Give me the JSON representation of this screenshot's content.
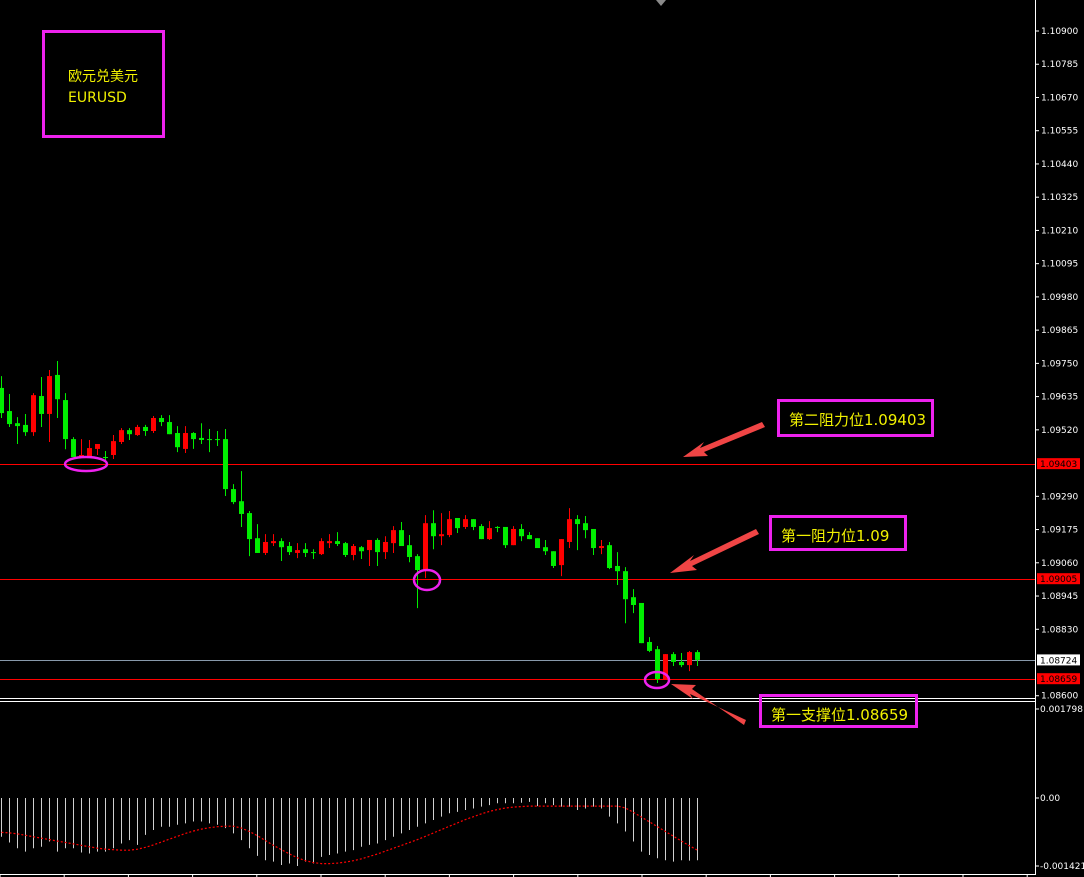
{
  "title_box": {
    "line1": "欧元兑美元",
    "line2": "EURUSD"
  },
  "annotations": {
    "resistance2": "第二阻力位1.09403",
    "resistance1": "第一阻力位1.09",
    "support1": "第一支撑位1.08659"
  },
  "colors": {
    "up": "#ff0000",
    "down": "#00ee00",
    "level_line": "#ff0000",
    "last_price_line": "#8899aa",
    "marker": "#ee22ee",
    "arrow": "#f04545",
    "note_text": "#f2f200",
    "signal": "#ff0000",
    "histogram": "#d0d0d0"
  },
  "chart_data": [
    {
      "type": "candlestick",
      "symbol": "EURUSD",
      "ylim": [
        1.086,
        1.1095
      ],
      "y_ticks": [
        "1.10900",
        "1.10785",
        "1.10670",
        "1.10555",
        "1.10440",
        "1.10325",
        "1.10210",
        "1.10095",
        "1.09980",
        "1.09865",
        "1.09750",
        "1.09635",
        "1.09520",
        "1.09290",
        "1.09175",
        "1.09060",
        "1.08945",
        "1.08830",
        "1.08600"
      ],
      "price_tags": [
        {
          "label": "1.09403",
          "value": 1.09403,
          "kind": "level"
        },
        {
          "label": "1.09005",
          "value": 1.09005,
          "kind": "level"
        },
        {
          "label": "1.08724",
          "value": 1.08724,
          "kind": "last"
        },
        {
          "label": "1.08659",
          "value": 1.08659,
          "kind": "level"
        }
      ],
      "ohlc": [
        [
          1.09665,
          1.09706,
          1.09561,
          1.09578
        ],
        [
          1.09585,
          1.09644,
          1.0953,
          1.0954
        ],
        [
          1.09543,
          1.09564,
          1.09471,
          1.09533
        ],
        [
          1.09537,
          1.09575,
          1.09499,
          1.09512
        ],
        [
          1.09512,
          1.09647,
          1.09499,
          1.0964
        ],
        [
          1.09637,
          1.09703,
          1.0953,
          1.09575
        ],
        [
          1.09575,
          1.09727,
          1.09478,
          1.09706
        ],
        [
          1.0971,
          1.09758,
          1.09561,
          1.09626
        ],
        [
          1.09623,
          1.09647,
          1.09453,
          1.09488
        ],
        [
          1.09488,
          1.09495,
          1.09426,
          1.09426
        ],
        [
          1.09426,
          1.09488,
          1.09426,
          1.09433
        ],
        [
          1.09429,
          1.09485,
          1.09429,
          1.09457
        ],
        [
          1.09454,
          1.09464,
          1.09433,
          1.09471
        ],
        [
          1.09426,
          1.09447,
          1.09415,
          1.09425
        ],
        [
          1.09433,
          1.09502,
          1.09419,
          1.09481
        ],
        [
          1.09478,
          1.09526,
          1.09471,
          1.09519
        ],
        [
          1.09519,
          1.09526,
          1.09485,
          1.09505
        ],
        [
          1.09502,
          1.09537,
          1.09499,
          1.0953
        ],
        [
          1.0953,
          1.09537,
          1.09499,
          1.09516
        ],
        [
          1.09516,
          1.09568,
          1.09509,
          1.09561
        ],
        [
          1.09561,
          1.09571,
          1.09533,
          1.09547
        ],
        [
          1.09547,
          1.09571,
          1.09505,
          1.09505
        ],
        [
          1.09509,
          1.09533,
          1.09443,
          1.0946
        ],
        [
          1.09454,
          1.09533,
          1.0944,
          1.09509
        ],
        [
          1.09509,
          1.09512,
          1.09454,
          1.09488
        ],
        [
          1.09492,
          1.09543,
          1.09471,
          1.09485
        ],
        [
          1.09488,
          1.09523,
          1.09443,
          1.09487
        ],
        [
          1.09488,
          1.09516,
          1.09464,
          1.09487
        ],
        [
          1.09488,
          1.09523,
          1.09291,
          1.09315
        ],
        [
          1.09315,
          1.09332,
          1.09263,
          1.0927
        ],
        [
          1.09273,
          1.09377,
          1.09184,
          1.09229
        ],
        [
          1.09232,
          1.09239,
          1.09083,
          1.09142
        ],
        [
          1.09145,
          1.09194,
          1.09094,
          1.09094
        ],
        [
          1.09094,
          1.09159,
          1.09087,
          1.09132
        ],
        [
          1.09128,
          1.09159,
          1.09118,
          1.09135
        ],
        [
          1.09135,
          1.09145,
          1.09066,
          1.09114
        ],
        [
          1.09118,
          1.09132,
          1.09087,
          1.09097
        ],
        [
          1.09094,
          1.09128,
          1.09076,
          1.09104
        ],
        [
          1.09107,
          1.09128,
          1.0908,
          1.09094
        ],
        [
          1.09097,
          1.09107,
          1.09073,
          1.09096
        ],
        [
          1.0909,
          1.09145,
          1.09087,
          1.09135
        ],
        [
          1.09128,
          1.09159,
          1.09111,
          1.09135
        ],
        [
          1.09135,
          1.09166,
          1.09118,
          1.09125
        ],
        [
          1.09128,
          1.09132,
          1.0908,
          1.09087
        ],
        [
          1.09087,
          1.09125,
          1.09069,
          1.09118
        ],
        [
          1.09114,
          1.09118,
          1.09073,
          1.091
        ],
        [
          1.09104,
          1.09139,
          1.09049,
          1.09139
        ],
        [
          1.09139,
          1.09145,
          1.09049,
          1.09097
        ],
        [
          1.09097,
          1.09152,
          1.09073,
          1.09132
        ],
        [
          1.09128,
          1.09187,
          1.09094,
          1.09173
        ],
        [
          1.09173,
          1.09201,
          1.09118,
          1.09118
        ],
        [
          1.09121,
          1.09156,
          1.09062,
          1.0908
        ],
        [
          1.09083,
          1.0909,
          1.08903,
          1.09035
        ],
        [
          1.09035,
          1.09225,
          1.09007,
          1.09197
        ],
        [
          1.09197,
          1.09242,
          1.09107,
          1.09152
        ],
        [
          1.09152,
          1.09232,
          1.09121,
          1.09159
        ],
        [
          1.09156,
          1.09239,
          1.09149,
          1.09211
        ],
        [
          1.09215,
          1.09215,
          1.09163,
          1.0918
        ],
        [
          1.09184,
          1.09225,
          1.09177,
          1.09211
        ],
        [
          1.09211,
          1.09211,
          1.09173,
          1.09184
        ],
        [
          1.09187,
          1.09194,
          1.09142,
          1.09142
        ],
        [
          1.09142,
          1.09204,
          1.09139,
          1.0918
        ],
        [
          1.09184,
          1.09187,
          1.09166,
          1.09183
        ],
        [
          1.09184,
          1.09184,
          1.09111,
          1.09121
        ],
        [
          1.09121,
          1.09187,
          1.09121,
          1.09177
        ],
        [
          1.09177,
          1.09194,
          1.09135,
          1.09152
        ],
        [
          1.09156,
          1.09166,
          1.09142,
          1.09142
        ],
        [
          1.09145,
          1.09145,
          1.09111,
          1.09111
        ],
        [
          1.09114,
          1.09139,
          1.09087,
          1.091
        ],
        [
          1.091,
          1.091,
          1.09042,
          1.09049
        ],
        [
          1.09052,
          1.09142,
          1.09014,
          1.09142
        ],
        [
          1.09132,
          1.09249,
          1.09111,
          1.09211
        ],
        [
          1.09211,
          1.09225,
          1.09104,
          1.09194
        ],
        [
          1.09197,
          1.09222,
          1.09145,
          1.09173
        ],
        [
          1.09177,
          1.09177,
          1.09087,
          1.09111
        ],
        [
          1.09111,
          1.09139,
          1.0909,
          1.09118
        ],
        [
          1.09121,
          1.09132,
          1.09038,
          1.09042
        ],
        [
          1.09049,
          1.09097,
          1.08983,
          1.09031
        ],
        [
          1.09031,
          1.09045,
          1.08851,
          1.08934
        ],
        [
          1.08941,
          1.08969,
          1.08886,
          1.08914
        ],
        [
          1.08921,
          1.08921,
          1.08782,
          1.08782
        ],
        [
          1.08786,
          1.08803,
          1.08751,
          1.08755
        ],
        [
          1.08761,
          1.08772,
          1.08644,
          1.08658
        ],
        [
          1.08658,
          1.08744,
          1.08658,
          1.08744
        ],
        [
          1.08744,
          1.08751,
          1.08703,
          1.08717
        ],
        [
          1.08717,
          1.08748,
          1.08699,
          1.08706
        ],
        [
          1.08706,
          1.08755,
          1.08685,
          1.08751
        ],
        [
          1.08751,
          1.08758,
          1.08703,
          1.08724
        ]
      ],
      "grid": false
    },
    {
      "type": "bar",
      "indicator_pane": true,
      "ylim": [
        -0.001421,
        0.001798
      ],
      "y_ticks": [
        "0.001798",
        "0.00",
        "-0.001421"
      ],
      "histogram": [
        -0.00081,
        -0.00093,
        -0.00105,
        -0.00112,
        -0.00105,
        -0.00102,
        -0.00091,
        -0.00112,
        -0.00105,
        -0.00105,
        -0.00114,
        -0.00116,
        -0.00112,
        -0.00112,
        -0.00105,
        -0.00095,
        -0.00088,
        -0.00098,
        -0.00077,
        -0.00067,
        -0.0006,
        -0.0006,
        -0.00056,
        -0.00053,
        -0.00049,
        -0.00049,
        -0.00053,
        -0.00056,
        -0.00063,
        -0.00074,
        -0.00088,
        -0.00105,
        -0.00121,
        -0.0013,
        -0.00133,
        -0.0014,
        -0.00137,
        -0.00142,
        -0.00133,
        -0.00137,
        -0.00123,
        -0.00119,
        -0.00116,
        -0.00112,
        -0.00109,
        -0.00102,
        -0.00098,
        -0.00095,
        -0.00088,
        -0.00081,
        -0.00074,
        -0.00067,
        -0.0006,
        -0.00053,
        -0.00046,
        -0.00039,
        -0.00032,
        -0.00029,
        -0.00025,
        -0.00022,
        -0.00018,
        -0.00015,
        -0.00011,
        -0.00011,
        -0.00011,
        -0.0001,
        -8e-05,
        -0.00017,
        -0.00011,
        -0.00015,
        -0.00018,
        -0.00018,
        -0.00025,
        -0.00022,
        -0.00018,
        -0.00022,
        -0.00039,
        -0.00053,
        -0.0007,
        -0.00091,
        -0.00112,
        -0.00119,
        -0.00126,
        -0.0013,
        -0.00133,
        -0.0013,
        -0.00131,
        -0.0013
      ],
      "signal": [
        -0.00072,
        -0.00073,
        -0.00075,
        -0.00078,
        -0.00081,
        -0.00084,
        -0.00087,
        -0.0009,
        -0.00093,
        -0.00096,
        -0.00099,
        -0.00102,
        -0.00105,
        -0.00107,
        -0.00108,
        -0.00109,
        -0.00109,
        -0.00107,
        -0.00103,
        -0.00098,
        -0.00092,
        -0.00086,
        -0.0008,
        -0.00074,
        -0.00069,
        -0.00065,
        -0.00062,
        -0.0006,
        -0.00059,
        -0.00059,
        -0.00063,
        -0.0007,
        -0.00079,
        -0.00089,
        -0.00099,
        -0.00108,
        -0.00117,
        -0.00125,
        -0.00131,
        -0.00135,
        -0.00137,
        -0.00137,
        -0.00136,
        -0.00134,
        -0.00131,
        -0.00127,
        -0.00122,
        -0.00117,
        -0.00111,
        -0.00105,
        -0.00099,
        -0.00093,
        -0.00087,
        -0.0008,
        -0.00073,
        -0.00066,
        -0.00059,
        -0.00052,
        -0.00045,
        -0.00039,
        -0.00033,
        -0.00028,
        -0.00024,
        -0.00021,
        -0.00019,
        -0.00018,
        -0.00017,
        -0.00017,
        -0.00017,
        -0.00017,
        -0.00017,
        -0.00017,
        -0.00017,
        -0.00017,
        -0.00017,
        -0.00017,
        -0.00017,
        -0.00017,
        -0.00021,
        -0.0003,
        -0.0004,
        -0.0005,
        -0.0006,
        -0.0007,
        -0.0008,
        -0.0009,
        -0.001,
        -0.00109
      ]
    }
  ]
}
